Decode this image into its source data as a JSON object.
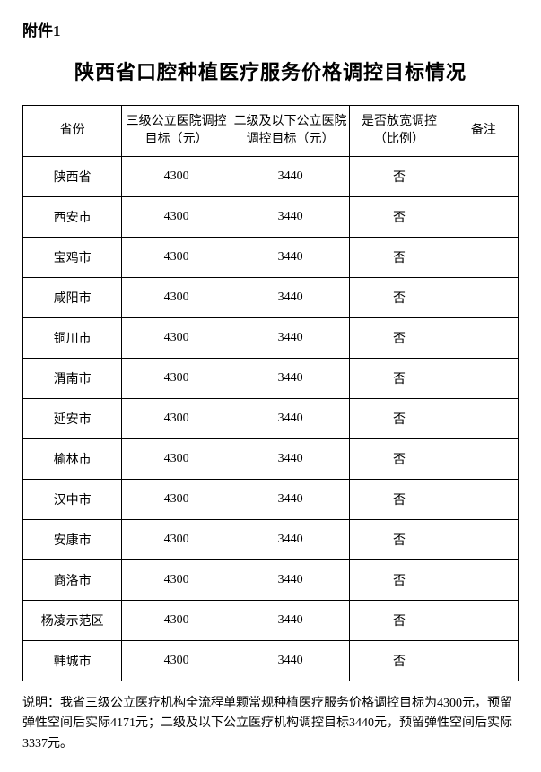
{
  "attachment_label": "附件1",
  "title": "陕西省口腔种植医疗服务价格调控目标情况",
  "table": {
    "type": "table",
    "columns": [
      "省份",
      "三级公立医院调控目标（元）",
      "二级及以下公立医院调控目标（元）",
      "是否放宽调控（比例）",
      "备注"
    ],
    "column_widths_pct": [
      20,
      22,
      24,
      20,
      14
    ],
    "border_color": "#000000",
    "background_color": "#ffffff",
    "header_fontsize": 14,
    "cell_fontsize": 14,
    "rows": [
      [
        "陕西省",
        "4300",
        "3440",
        "否",
        ""
      ],
      [
        "西安市",
        "4300",
        "3440",
        "否",
        ""
      ],
      [
        "宝鸡市",
        "4300",
        "3440",
        "否",
        ""
      ],
      [
        "咸阳市",
        "4300",
        "3440",
        "否",
        ""
      ],
      [
        "铜川市",
        "4300",
        "3440",
        "否",
        ""
      ],
      [
        "渭南市",
        "4300",
        "3440",
        "否",
        ""
      ],
      [
        "延安市",
        "4300",
        "3440",
        "否",
        ""
      ],
      [
        "榆林市",
        "4300",
        "3440",
        "否",
        ""
      ],
      [
        "汉中市",
        "4300",
        "3440",
        "否",
        ""
      ],
      [
        "安康市",
        "4300",
        "3440",
        "否",
        ""
      ],
      [
        "商洛市",
        "4300",
        "3440",
        "否",
        ""
      ],
      [
        "杨凌示范区",
        "4300",
        "3440",
        "否",
        ""
      ],
      [
        "韩城市",
        "4300",
        "3440",
        "否",
        ""
      ]
    ]
  },
  "note": "说明：我省三级公立医疗机构全流程单颗常规种植医疗服务价格调控目标为4300元，预留弹性空间后实际4171元；二级及以下公立医疗机构调控目标3440元，预留弹性空间后实际3337元。"
}
